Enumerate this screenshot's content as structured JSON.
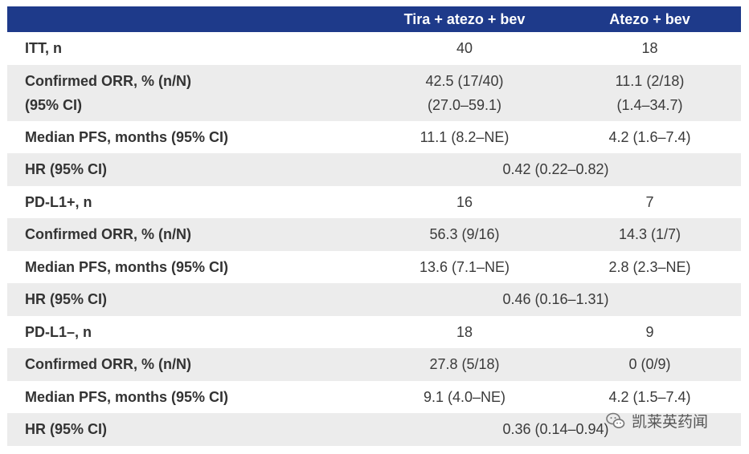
{
  "header": {
    "col1": "Tira + atezo + bev",
    "col2": "Atezo + bev"
  },
  "rows": [
    {
      "label": "ITT, n",
      "v1": "40",
      "v2": "18"
    },
    {
      "label_l1": "Confirmed ORR, % (n/N)",
      "label_l2": "(95% CI)",
      "v1_l1": "42.5 (17/40)",
      "v1_l2": "(27.0–59.1)",
      "v2_l1": "11.1 (2/18)",
      "v2_l2": "(1.4–34.7)"
    },
    {
      "label": "Median PFS, months (95% CI)",
      "v1": "11.1 (8.2–NE)",
      "v2": "4.2 (1.6–7.4)"
    },
    {
      "label": "HR (95% CI)",
      "span": "0.42 (0.22–0.82)"
    },
    {
      "label": "PD-L1+, n",
      "v1": "16",
      "v2": "7"
    },
    {
      "label": "Confirmed ORR, % (n/N)",
      "v1": "56.3 (9/16)",
      "v2": "14.3 (1/7)"
    },
    {
      "label": "Median PFS, months (95% CI)",
      "v1": "13.6 (7.1–NE)",
      "v2": "2.8 (2.3–NE)"
    },
    {
      "label": "HR (95% CI)",
      "span": "0.46 (0.16–1.31)"
    },
    {
      "label": "PD-L1–, n",
      "v1": "18",
      "v2": "9"
    },
    {
      "label": "Confirmed ORR, % (n/N)",
      "v1": "27.8 (5/18)",
      "v2": "0 (0/9)"
    },
    {
      "label": "Median PFS, months (95% CI)",
      "v1": "9.1 (4.0–NE)",
      "v2": "4.2 (1.5–7.4)"
    },
    {
      "label": "HR (95% CI)",
      "span": "0.36 (0.14–0.94)"
    }
  ],
  "watermark": {
    "text": "凯莱英药闻",
    "icon": "wechat-icon"
  },
  "colors": {
    "header_bg": "#1e3a8a",
    "shade": "#ececec"
  }
}
